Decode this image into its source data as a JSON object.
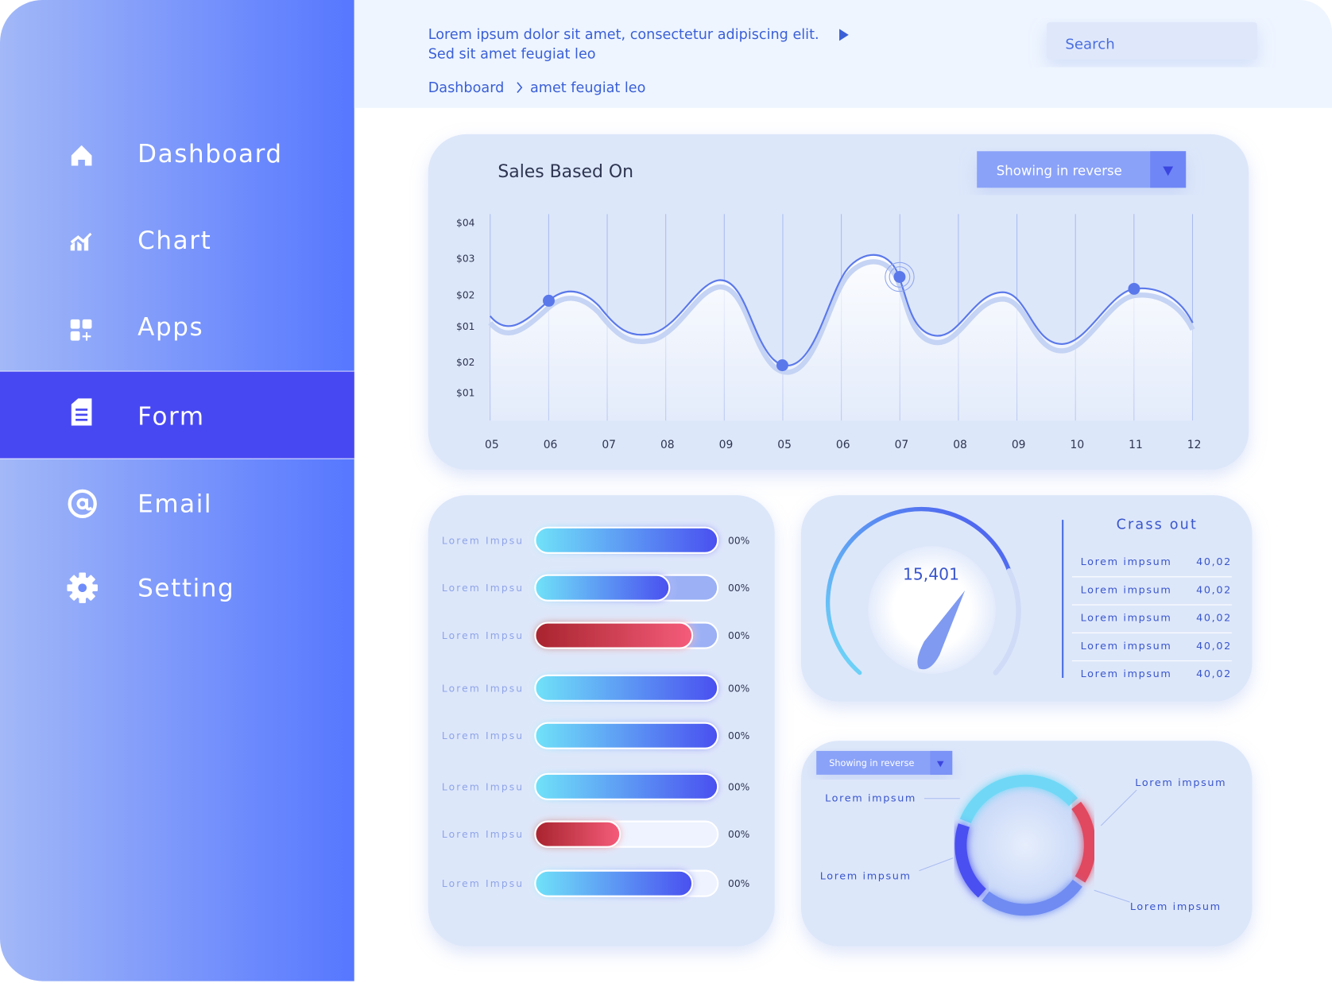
{
  "sidebar": {
    "items": [
      "Dashboard",
      "Chart",
      "Apps",
      "Form",
      "Email",
      "Setting"
    ]
  },
  "header": {
    "text_lines": [
      "Lorem ipsum dolor sit amet, consectetur adipiscing elit.",
      "Sed sit amet feugiat leo"
    ],
    "search": "Search",
    "breadcrumb": [
      "Dashboard",
      "amet feugiat leo"
    ]
  },
  "sales_chart": {
    "title": "Sales Based On",
    "dropdown": "Showing in reverse",
    "y_labels": [
      "$04",
      "$03",
      "$02",
      "$01",
      "$02",
      "$01"
    ],
    "x_labels": [
      "05",
      "06",
      "07",
      "08",
      "09",
      "05",
      "06",
      "07",
      "08",
      "09",
      "10",
      "11",
      "12"
    ]
  },
  "progress": {
    "rows": [
      {
        "label": "Lorem Impsu",
        "value": "00%"
      },
      {
        "label": "Lorem Impsu",
        "value": "00%"
      },
      {
        "label": "Lorem Impsu",
        "value": "00%"
      },
      {
        "label": "Lorem Impsu",
        "value": "00%"
      },
      {
        "label": "Lorem Impsu",
        "value": "00%"
      },
      {
        "label": "Lorem Impsu",
        "value": "00%"
      },
      {
        "label": "Lorem Impsu",
        "value": "00%"
      },
      {
        "label": "Lorem Impsu",
        "value": "00%"
      }
    ]
  },
  "gauge": {
    "value": "15,401",
    "title": "Crass out",
    "rows": [
      {
        "label": "Lorem impsum",
        "value": "40,02"
      },
      {
        "label": "Lorem impsum",
        "value": "40,02"
      },
      {
        "label": "Lorem impsum",
        "value": "40,02"
      },
      {
        "label": "Lorem impsum",
        "value": "40,02"
      },
      {
        "label": "Lorem impsum",
        "value": "40,02"
      }
    ]
  },
  "donut": {
    "dropdown": "Showing in reverse",
    "labels": [
      "Lorem impsum",
      "Lorem impsum",
      "Lorem impsum",
      "Lorem impsum"
    ]
  }
}
